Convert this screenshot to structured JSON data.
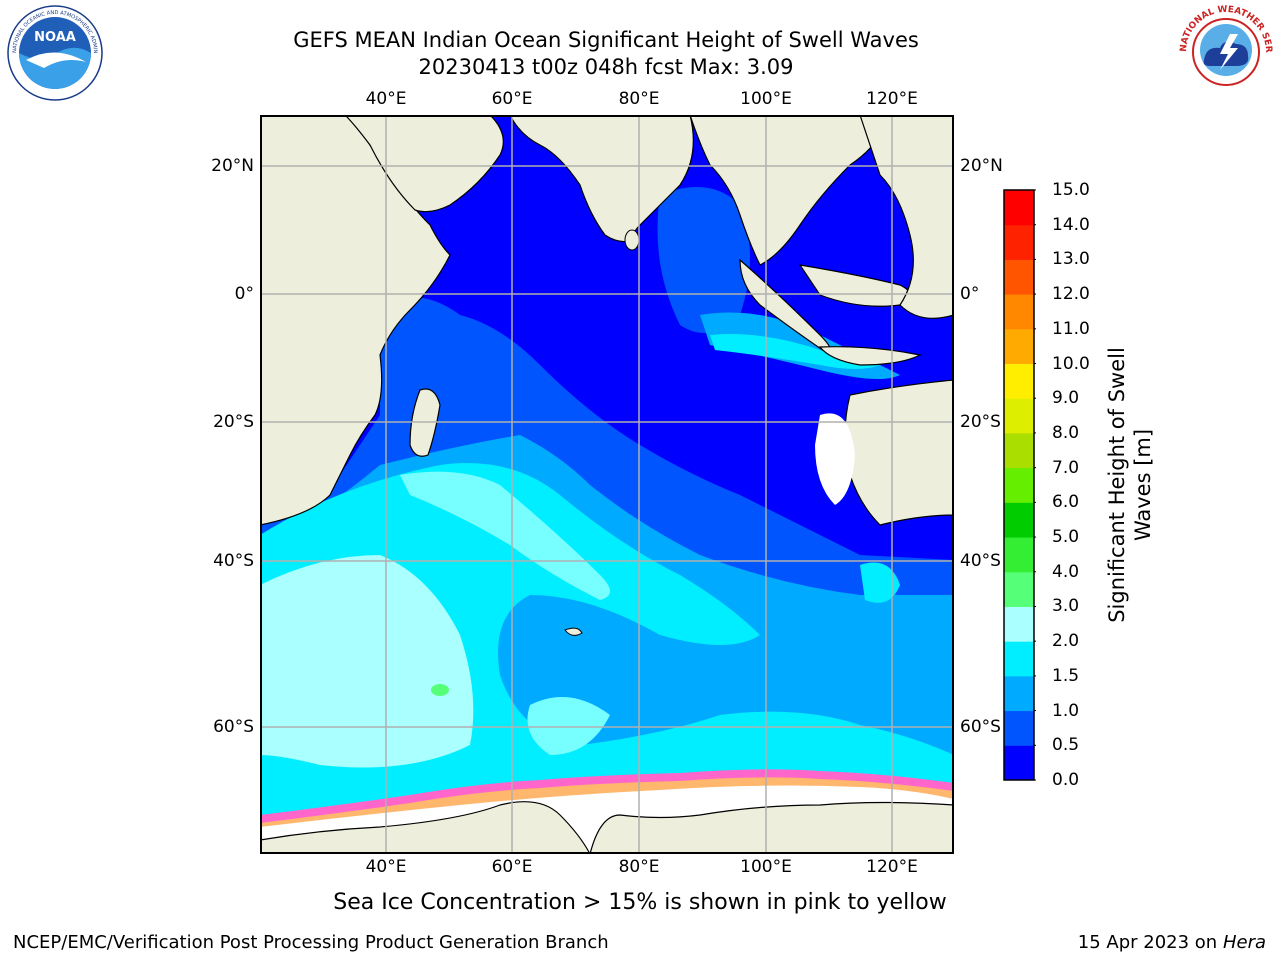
{
  "header": {
    "title_line1": "GEFS MEAN Indian Ocean Significant Height of Swell Waves",
    "title_line2": "20230413 t00z 048h fcst   Max: 3.09"
  },
  "logos": {
    "noaa": {
      "text": "NOAA",
      "ring_text": "NATIONAL OCEANIC AND ATMOSPHERIC ADMINISTRATION · U.S. DEPARTMENT OF COMMERCE"
    },
    "nws": {
      "ring_text": "NATIONAL WEATHER SERVICE"
    }
  },
  "map": {
    "lon_labels": [
      "40°E",
      "60°E",
      "80°E",
      "100°E",
      "120°E"
    ],
    "lat_labels": [
      "20°N",
      "0°",
      "20°S",
      "40°S",
      "60°S"
    ],
    "land_color": "#eeeedd",
    "gridline_color": "#b0b0b0"
  },
  "colorbar": {
    "label_line1": "Significant Height of Swell",
    "label_line2": "Waves [m]",
    "ticks": [
      "0.0",
      "0.5",
      "1.0",
      "1.5",
      "2.0",
      "3.0",
      "4.0",
      "5.0",
      "6.0",
      "7.0",
      "8.0",
      "9.0",
      "10.0",
      "11.0",
      "12.0",
      "13.0",
      "14.0",
      "15.0"
    ],
    "colors": [
      "#0000ff",
      "#0055ff",
      "#00aaff",
      "#00eeff",
      "#77ffff",
      "#aaffff",
      "#55ff77",
      "#33ee33",
      "#00cc00",
      "#66ee00",
      "#aadd00",
      "#ddee00",
      "#ffee00",
      "#ffcc00",
      "#ffaa00",
      "#ff8800",
      "#ff5500",
      "#ff2200",
      "#ff0000"
    ]
  },
  "note": "Sea Ice Concentration > 15% is shown in pink to yellow",
  "footer": {
    "left": "NCEP/EMC/Verification Post Processing Product Generation Branch",
    "right_prefix": "15 Apr 2023 on ",
    "right_italic": "Hera"
  }
}
